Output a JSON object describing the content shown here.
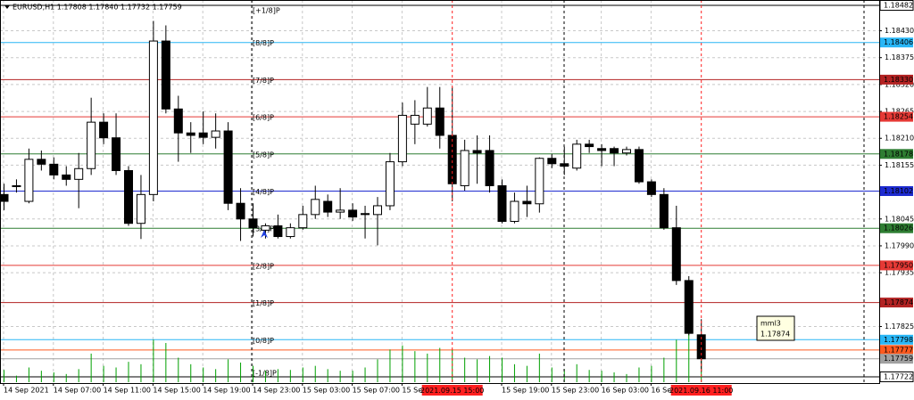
{
  "chart_data": {
    "type": "candlestick",
    "title": "EURUSD,H1  1.17808 1.17840 1.17732 1.17759",
    "x": [
      "2021.09.14 03:00",
      "2021.09.14 04:00",
      "2021.09.14 05:00",
      "2021.09.14 06:00",
      "2021.09.14 07:00",
      "2021.09.14 08:00",
      "2021.09.14 09:00",
      "2021.09.14 10:00",
      "2021.09.14 11:00",
      "2021.09.14 12:00",
      "2021.09.14 13:00",
      "2021.09.14 14:00",
      "2021.09.14 15:00",
      "2021.09.14 16:00",
      "2021.09.14 17:00",
      "2021.09.14 18:00",
      "2021.09.14 19:00",
      "2021.09.14 20:00",
      "2021.09.14 21:00",
      "2021.09.14 22:00",
      "2021.09.14 23:00",
      "2021.09.15 00:00",
      "2021.09.15 01:00",
      "2021.09.15 02:00",
      "2021.09.15 03:00",
      "2021.09.15 04:00",
      "2021.09.15 05:00",
      "2021.09.15 06:00",
      "2021.09.15 07:00",
      "2021.09.15 08:00",
      "2021.09.15 09:00",
      "2021.09.15 10:00",
      "2021.09.15 11:00",
      "2021.09.15 12:00",
      "2021.09.15 13:00",
      "2021.09.15 14:00",
      "2021.09.15 15:00",
      "2021.09.15 16:00",
      "2021.09.15 17:00",
      "2021.09.15 18:00",
      "2021.09.15 19:00",
      "2021.09.15 20:00",
      "2021.09.15 21:00",
      "2021.09.15 22:00",
      "2021.09.15 23:00",
      "2021.09.16 00:00",
      "2021.09.16 01:00",
      "2021.09.16 02:00",
      "2021.09.16 03:00",
      "2021.09.16 04:00",
      "2021.09.16 05:00",
      "2021.09.16 06:00",
      "2021.09.16 07:00",
      "2021.09.16 08:00",
      "2021.09.16 09:00",
      "2021.09.16 10:00",
      "2021.09.16 11:00"
    ],
    "open": [
      1.18095,
      1.18113,
      1.18081,
      1.18167,
      1.18157,
      1.18135,
      1.18126,
      1.18148,
      1.18243,
      1.18211,
      1.18144,
      1.18036,
      1.18095,
      1.18409,
      1.1827,
      1.18221,
      1.18221,
      1.18212,
      1.18225,
      1.18077,
      1.18045,
      1.18022,
      1.18031,
      1.18009,
      1.18027,
      1.18054,
      1.18081,
      1.18059,
      1.18063,
      1.18056,
      1.18054,
      1.18072,
      1.18162,
      1.18239,
      1.18239,
      1.18272,
      1.18216,
      1.18113,
      1.18185,
      1.18185,
      1.18113,
      1.1804,
      1.18081,
      1.18076,
      1.18169,
      1.18158,
      1.18149,
      1.18198,
      1.18189,
      1.18189,
      1.1818,
      1.18187,
      1.18121,
      1.18095,
      1.18027,
      1.17919,
      1.17808
    ],
    "high": [
      1.18117,
      1.18126,
      1.18189,
      1.18185,
      1.18171,
      1.18153,
      1.1818,
      1.18293,
      1.18261,
      1.18261,
      1.18153,
      1.18135,
      1.1845,
      1.18441,
      1.18297,
      1.18243,
      1.18265,
      1.18261,
      1.18243,
      1.18108,
      1.18077,
      1.18036,
      1.18054,
      1.18036,
      1.18072,
      1.18113,
      1.18095,
      1.18108,
      1.18077,
      1.18072,
      1.1809,
      1.1818,
      1.18283,
      1.18288,
      1.18315,
      1.18315,
      1.18315,
      1.18207,
      1.18216,
      1.18216,
      1.18126,
      1.18099,
      1.18113,
      1.18171,
      1.18178,
      1.18193,
      1.18207,
      1.18207,
      1.18198,
      1.18193,
      1.18193,
      1.18193,
      1.18126,
      1.18108,
      1.18072,
      1.17928,
      1.1784
    ],
    "low": [
      1.18063,
      1.18099,
      1.18077,
      1.18144,
      1.18126,
      1.18113,
      1.18067,
      1.18135,
      1.18198,
      1.18135,
      1.18031,
      1.18004,
      1.18081,
      1.18261,
      1.18162,
      1.1818,
      1.18198,
      1.18189,
      1.18063,
      1.18,
      1.18009,
      1.18005,
      1.18005,
      1.18005,
      1.18023,
      1.18045,
      1.18049,
      1.18045,
      1.18041,
      1.18005,
      1.17991,
      1.18063,
      1.18153,
      1.18198,
      1.18234,
      1.18189,
      1.18081,
      1.18103,
      1.18117,
      1.18099,
      1.18036,
      1.18036,
      1.18049,
      1.18058,
      1.18149,
      1.18135,
      1.18144,
      1.1818,
      1.18153,
      1.18153,
      1.18175,
      1.18117,
      1.1809,
      1.18023,
      1.1791,
      1.17807,
      1.17732
    ],
    "close": [
      1.18081,
      1.18112,
      1.18167,
      1.18157,
      1.18135,
      1.18126,
      1.18148,
      1.18243,
      1.18211,
      1.18144,
      1.18036,
      1.18095,
      1.18409,
      1.1827,
      1.18221,
      1.18216,
      1.18212,
      1.18225,
      1.18077,
      1.18045,
      1.18027,
      1.18031,
      1.18009,
      1.18027,
      1.18054,
      1.18085,
      1.18059,
      1.18063,
      1.18049,
      1.18054,
      1.18072,
      1.18162,
      1.18257,
      1.18257,
      1.18272,
      1.18216,
      1.18117,
      1.18185,
      1.1818,
      1.18113,
      1.1804,
      1.18081,
      1.18076,
      1.18169,
      1.18158,
      1.18153,
      1.18198,
      1.18193,
      1.18185,
      1.1818,
      1.18187,
      1.18121,
      1.18095,
      1.18027,
      1.17919,
      1.17811,
      1.17759
    ],
    "volume": [
      15,
      8,
      18,
      14,
      12,
      10,
      16,
      35,
      20,
      18,
      25,
      22,
      52,
      48,
      30,
      22,
      18,
      16,
      28,
      24,
      20,
      14,
      16,
      15,
      18,
      20,
      16,
      14,
      14,
      18,
      28,
      40,
      45,
      38,
      35,
      42,
      40,
      30,
      28,
      32,
      30,
      22,
      20,
      35,
      18,
      16,
      22,
      15,
      14,
      12,
      10,
      18,
      20,
      30,
      52,
      60,
      45
    ],
    "volume_color": "#00a000",
    "bull_color": "#ffffff",
    "bear_color": "#000000",
    "ylim": [
      1.17722,
      1.18482
    ],
    "yticks": [
      {
        "value": 1.1843,
        "label": "1.18430"
      },
      1.18375,
      {
        "value": 1.1832,
        "label": "1.18320"
      },
      1.18265,
      {
        "value": 1.1821,
        "label": "1.18210"
      },
      1.18155,
      1.18045,
      {
        "value": 1.1799,
        "label": "1.17990"
      },
      1.17935,
      1.17825
    ],
    "xticks": [
      {
        "value": "2021.09.14 03:00",
        "label": "14 Sep 2021"
      },
      {
        "value": "2021.09.14 07:00",
        "label": "14 Sep 07:00"
      },
      {
        "value": "2021.09.14 11:00",
        "label": "14 Sep 11:00"
      },
      {
        "value": "2021.09.14 15:00",
        "label": "14 Sep 15:00"
      },
      {
        "value": "2021.09.14 19:00",
        "label": "14 Sep 19:00"
      },
      {
        "value": "2021.09.14 23:00",
        "label": "14 Sep 23:00"
      },
      {
        "value": "2021.09.15 03:00",
        "label": "15 Sep 03:00"
      },
      {
        "value": "2021.09.15 07:00",
        "label": "15 Sep 07:00"
      },
      {
        "value": "2021.09.15 11:00",
        "label": "15 Sep 11:00"
      },
      {
        "value": "2021.09.15 19:00",
        "label": "15 Sep 19:00"
      },
      {
        "value": "2021.09.15 23:00",
        "label": "15 Sep 23:00"
      },
      {
        "value": "2021.09.16 03:00",
        "label": "16 Sep 03:00"
      },
      {
        "value": "2021.09.16 07:00",
        "label": "16 Sep 07:00"
      }
    ],
    "grid": true,
    "levels": [
      {
        "label": "[+1/8]P",
        "value": 1.18482,
        "value_label": "1.18482",
        "color": "#000000"
      },
      {
        "label": "[8/8]P",
        "value": 1.18406,
        "value_label": "1.18406",
        "color": "#29b6f6"
      },
      {
        "label": "[7/8]P",
        "value": 1.1833,
        "value_label": "1.18330",
        "color": "#b22222"
      },
      {
        "label": "[6/8]P",
        "value": 1.18254,
        "value_label": "1.18254",
        "color": "#e53935"
      },
      {
        "label": "[5/8]P",
        "value": 1.18178,
        "value_label": "1.18178",
        "color": "#2e7d32"
      },
      {
        "label": "[4/8]P",
        "value": 1.18102,
        "value_label": "1.18102",
        "color": "#1e2bd0"
      },
      {
        "label": "[3/8]P",
        "value": 1.18026,
        "value_label": "1.18026",
        "color": "#2e7d32"
      },
      {
        "label": "[2/8]P",
        "value": 1.1795,
        "value_label": "1.17950",
        "color": "#e53935"
      },
      {
        "label": "[1/8]P",
        "value": 1.17874,
        "value_label": "1.17874",
        "color": "#b22222"
      },
      {
        "label": "[0/8]P",
        "value": 1.17798,
        "value_label": "1.17798",
        "color": "#29b6f6"
      },
      {
        "label": "[-1/8]P",
        "value": 1.17722,
        "value_label": "1.17722",
        "color": "#000000"
      }
    ],
    "price_lines": [
      {
        "value": 1.17777,
        "value_label": "1.17777",
        "color": "#ff5a1f"
      },
      {
        "value": 1.17759,
        "value_label": "1.17759",
        "color": "#a0a0a0"
      }
    ],
    "cursor_times": [
      "2021.09.15 15:00",
      "2021.09.16 11:00"
    ],
    "cursor_color": "#ff2020",
    "tooltip": {
      "title": "mml3",
      "text": "1.17874"
    }
  }
}
